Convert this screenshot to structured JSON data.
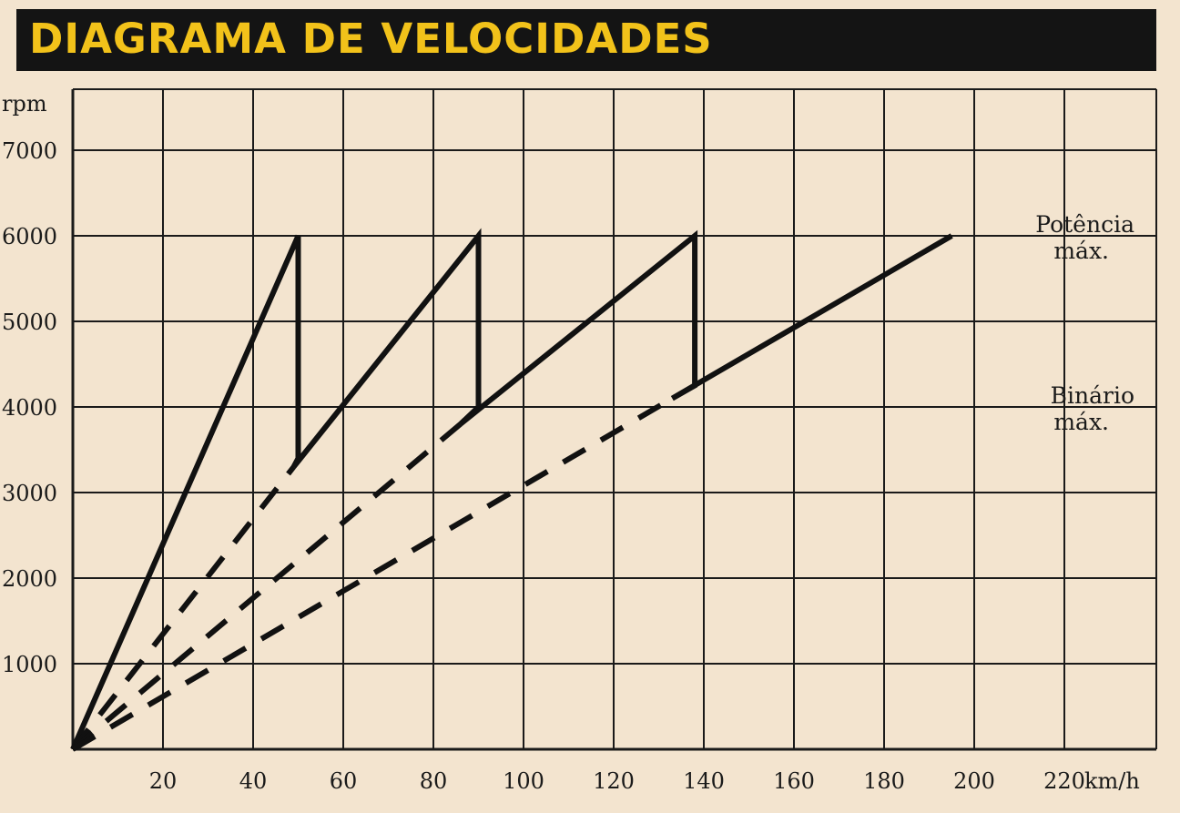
{
  "chart_data": {
    "type": "line",
    "title": "DIAGRAMA DE VELOCIDADES",
    "xlabel": "km/h",
    "ylabel": "rpm",
    "xlim": [
      0,
      220
    ],
    "ylim": [
      0,
      7000
    ],
    "grid": true,
    "x_ticks": [
      20,
      40,
      60,
      80,
      100,
      120,
      140,
      160,
      180,
      200,
      220
    ],
    "y_ticks": [
      1000,
      2000,
      3000,
      4000,
      5000,
      6000,
      7000
    ],
    "series": [
      {
        "style": "solid",
        "points": [
          [
            0,
            0
          ],
          [
            50,
            6000
          ],
          [
            50,
            3400
          ],
          [
            49,
            3300
          ],
          [
            90,
            6000
          ],
          [
            90,
            4000
          ],
          [
            86,
            3800
          ],
          [
            138,
            6000
          ],
          [
            138,
            4250
          ],
          [
            133,
            4100
          ],
          [
            195,
            6000
          ]
        ]
      },
      {
        "style": "dashed",
        "points": [
          [
            0,
            0
          ],
          [
            49,
            3300
          ]
        ]
      },
      {
        "style": "dashed",
        "points": [
          [
            0,
            0
          ],
          [
            86,
            3800
          ]
        ]
      },
      {
        "style": "dashed",
        "points": [
          [
            0,
            0
          ],
          [
            133,
            4100
          ]
        ]
      }
    ],
    "annotations": [
      {
        "lines": [
          "Potência",
          "máx."
        ],
        "y": 6000
      },
      {
        "lines": [
          "Binário",
          "máx."
        ],
        "y": 4000
      }
    ]
  }
}
